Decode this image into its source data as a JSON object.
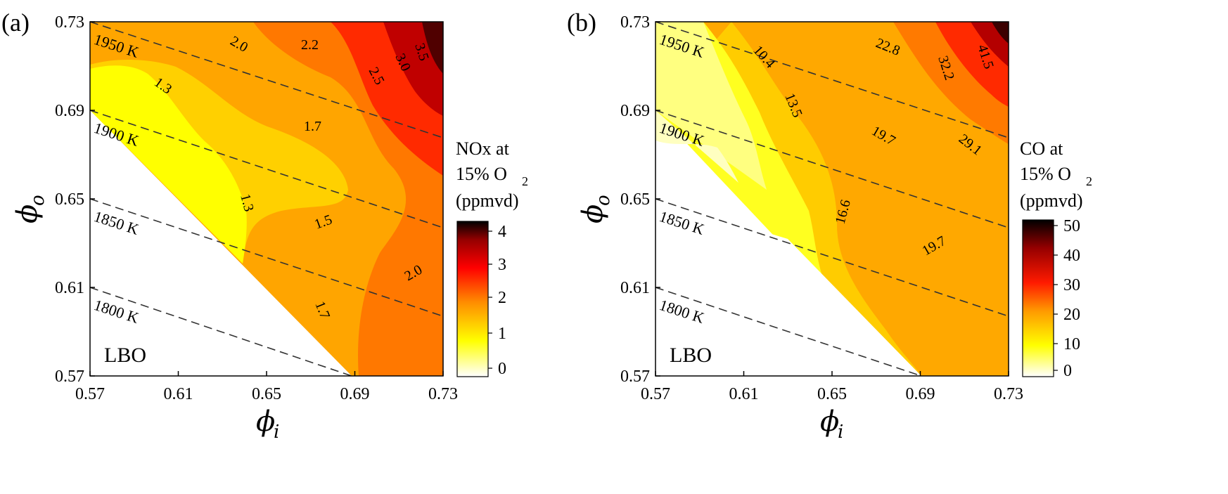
{
  "chart_data": [
    {
      "type": "contour",
      "panel_label": "(a)",
      "xlabel": {
        "symbol": "ϕ",
        "sub": "i"
      },
      "ylabel": {
        "symbol": "ϕ",
        "sub": "o"
      },
      "x_ticks": [
        "0.57",
        "0.61",
        "0.65",
        "0.69",
        "0.73"
      ],
      "y_ticks": [
        "0.57",
        "0.61",
        "0.65",
        "0.69",
        "0.73"
      ],
      "xlim": [
        0.57,
        0.73
      ],
      "ylim": [
        0.57,
        0.73
      ],
      "region_label": "LBO",
      "colorbar": {
        "title_lines": [
          "NOx at",
          "15% O",
          "(ppmvd)"
        ],
        "title_sub": "2",
        "ticks": [
          "4",
          "3",
          "2",
          "1",
          "0"
        ],
        "range": [
          0,
          4.3
        ]
      },
      "contour_labels": [
        "2.0",
        "2.2",
        "3.5",
        "3.0",
        "2.5",
        "1.3",
        "1.7",
        "1.3",
        "1.5",
        "2.0",
        "1.7"
      ],
      "isotherms": [
        "1950 K",
        "1900 K",
        "1850 K",
        "1800 K"
      ]
    },
    {
      "type": "contour",
      "panel_label": "(b)",
      "xlabel": {
        "symbol": "ϕ",
        "sub": "i"
      },
      "ylabel": {
        "symbol": "ϕ",
        "sub": "o"
      },
      "x_ticks": [
        "0.57",
        "0.61",
        "0.65",
        "0.69",
        "0.73"
      ],
      "y_ticks": [
        "0.57",
        "0.61",
        "0.65",
        "0.69",
        "0.73"
      ],
      "xlim": [
        0.57,
        0.73
      ],
      "ylim": [
        0.57,
        0.73
      ],
      "region_label": "LBO",
      "colorbar": {
        "title_lines": [
          "CO at",
          "15% O",
          "(ppmvd)"
        ],
        "title_sub": "2",
        "ticks": [
          "50",
          "40",
          "30",
          "20",
          "10",
          "0"
        ],
        "range": [
          0,
          53
        ]
      },
      "contour_labels": [
        "10.4",
        "22.8",
        "32.2",
        "41.5",
        "13.5",
        "19.7",
        "29.1",
        "16.6",
        "19.7"
      ],
      "isotherms": [
        "1950 K",
        "1900 K",
        "1850 K",
        "1800 K"
      ]
    }
  ],
  "colors": {
    "white": "#ffffff",
    "pale_yellow": "#ffff80",
    "yellow": "#ffff00",
    "gold": "#ffd700",
    "orange_light": "#ffae00",
    "orange": "#ff9000",
    "dark_orange": "#ff5f00",
    "red": "#ff1a00",
    "dark_red": "#c80000",
    "maroon": "#640000",
    "black": "#000000"
  }
}
